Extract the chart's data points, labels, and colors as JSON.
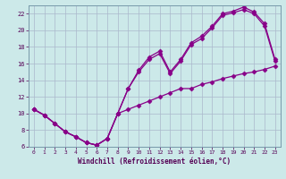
{
  "xlabel": "Windchill (Refroidissement éolien,°C)",
  "ylabel": "",
  "xlim": [
    -0.5,
    23.5
  ],
  "ylim": [
    6,
    23
  ],
  "xticks": [
    0,
    1,
    2,
    3,
    4,
    5,
    6,
    7,
    8,
    9,
    10,
    11,
    12,
    13,
    14,
    15,
    16,
    17,
    18,
    19,
    20,
    21,
    22,
    23
  ],
  "yticks": [
    6,
    8,
    10,
    12,
    14,
    16,
    18,
    20,
    22
  ],
  "background_color": "#cce9e9",
  "grid_color": "#aab8cc",
  "line_color": "#880088",
  "curve1_x": [
    0,
    1,
    2,
    3,
    4,
    5,
    6,
    7,
    8,
    9,
    10,
    11,
    12,
    13,
    14,
    15,
    16,
    17,
    18,
    19,
    20,
    21,
    22,
    23
  ],
  "curve1_y": [
    10.5,
    9.8,
    8.8,
    7.8,
    7.2,
    6.5,
    6.2,
    7.0,
    10.0,
    13.0,
    15.0,
    16.5,
    17.2,
    14.8,
    16.3,
    18.3,
    19.0,
    20.3,
    21.8,
    22.1,
    22.5,
    22.0,
    20.5,
    16.3
  ],
  "curve2_x": [
    0,
    1,
    2,
    3,
    4,
    5,
    6,
    7,
    8,
    9,
    10,
    11,
    12,
    13,
    14,
    15,
    16,
    17,
    18,
    19,
    20,
    21,
    22,
    23
  ],
  "curve2_y": [
    10.5,
    9.8,
    8.8,
    7.8,
    7.2,
    6.5,
    6.2,
    7.0,
    10.0,
    13.0,
    15.2,
    16.8,
    17.5,
    15.0,
    16.5,
    18.5,
    19.3,
    20.5,
    22.0,
    22.3,
    22.8,
    22.2,
    20.8,
    16.5
  ],
  "curve3_x": [
    0,
    1,
    2,
    3,
    4,
    5,
    6,
    7,
    8,
    9,
    10,
    11,
    12,
    13,
    14,
    15,
    16,
    17,
    18,
    19,
    20,
    21,
    22,
    23
  ],
  "curve3_y": [
    10.5,
    9.8,
    8.8,
    7.8,
    7.2,
    6.5,
    6.2,
    7.0,
    10.0,
    10.5,
    11.0,
    11.5,
    12.0,
    12.5,
    13.0,
    13.0,
    13.5,
    13.8,
    14.2,
    14.5,
    14.8,
    15.0,
    15.3,
    15.7
  ],
  "marker": "D",
  "markersize": 2.5,
  "linewidth": 0.9
}
